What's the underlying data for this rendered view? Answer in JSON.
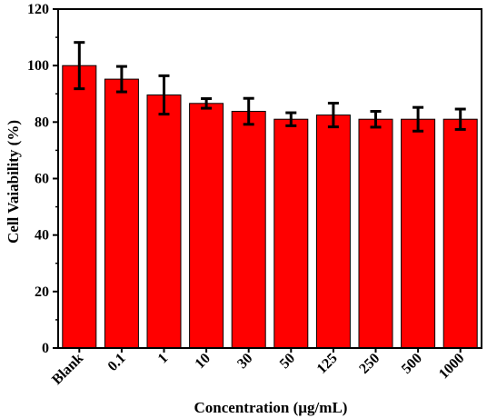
{
  "chart_data": {
    "type": "bar",
    "xlabel": "Concentration (µg/mL)",
    "ylabel": "Cell Vaiability (%)",
    "ylim": [
      0,
      120
    ],
    "yticks": [
      0,
      20,
      40,
      60,
      80,
      100,
      120
    ],
    "categories": [
      "Blank",
      "0.1",
      "1",
      "10",
      "30",
      "50",
      "125",
      "250",
      "500",
      "1000"
    ],
    "values": [
      100,
      95.2,
      89.6,
      86.6,
      83.8,
      81.0,
      82.5,
      81.0,
      81.0,
      81.0
    ],
    "errors": [
      8.2,
      4.5,
      6.8,
      1.7,
      4.6,
      2.3,
      4.2,
      2.8,
      4.2,
      3.6
    ],
    "bar_color": "#ff0000",
    "edge_color": "#000000",
    "grid": false
  }
}
